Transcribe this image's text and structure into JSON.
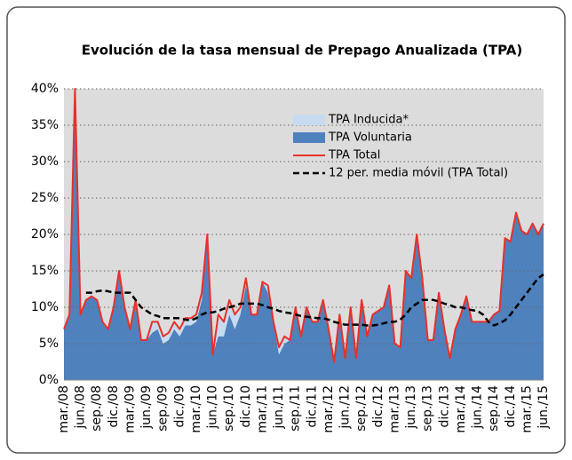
{
  "chart_data": {
    "type": "area-line",
    "title": "Evolución de la tasa mensual de Prepago Anualizada (TPA)",
    "categories": [
      "mar./08",
      null,
      null,
      "jun./08",
      null,
      null,
      "sep./08",
      null,
      null,
      "dic./08",
      null,
      null,
      "mar./09",
      null,
      null,
      "jun./09",
      null,
      null,
      "sep./09",
      null,
      null,
      "dic./09",
      null,
      null,
      "mar./10",
      null,
      null,
      "jun./10",
      null,
      null,
      "sep./10",
      null,
      null,
      "dic./10",
      null,
      null,
      "mar./11",
      null,
      null,
      "jun./11",
      null,
      null,
      "sep./11",
      null,
      null,
      "dic./11",
      null,
      null,
      "mar./12",
      null,
      null,
      "jun./12",
      null,
      null,
      "sep./12",
      null,
      null,
      "dic./12",
      null,
      null,
      "mar./13",
      null,
      null,
      "jun./13",
      null,
      null,
      "sep./13",
      null,
      null,
      "dic./13",
      null,
      null,
      "mar./14",
      null,
      null,
      "jun./14",
      null,
      null,
      "sep./14",
      null,
      null,
      "dic./14",
      null,
      null,
      "mar./15",
      null,
      null,
      "jun./15"
    ],
    "series": [
      {
        "name": "TPA Voluntaria",
        "kind": "area",
        "color": "#4f81bd",
        "values": [
          7,
          9,
          40,
          9,
          11,
          11.5,
          11,
          8,
          7,
          10,
          15,
          10,
          7,
          11,
          5.5,
          5.5,
          6.5,
          7,
          5,
          5.5,
          7,
          6,
          7.5,
          7.5,
          8,
          11,
          20,
          3.5,
          6,
          6,
          9,
          7,
          9,
          13,
          9,
          9,
          13.5,
          12,
          8,
          3.5,
          5,
          5.5,
          10,
          6,
          10,
          8,
          8,
          11,
          7,
          2.5,
          9,
          3,
          10,
          3,
          11,
          6,
          9,
          9.5,
          10,
          13,
          5,
          4.5,
          15,
          14,
          20,
          14,
          5.5,
          5.5,
          12,
          7,
          3,
          7,
          9,
          11.5,
          8,
          8,
          8,
          8,
          9,
          9.5,
          19.5,
          19,
          23,
          20.5,
          20,
          21.5,
          20,
          21.5
        ]
      },
      {
        "name": "TPA Inducida*",
        "kind": "area",
        "color": "#c6dbef",
        "values": [
          0,
          0,
          0,
          0,
          0,
          0,
          0,
          0,
          0,
          0,
          0,
          0,
          0,
          0,
          0,
          0,
          1.5,
          1,
          1,
          1,
          1,
          1,
          1,
          1,
          1,
          1,
          0,
          0,
          3,
          2,
          2,
          2,
          1,
          1,
          0,
          0,
          0,
          1,
          0,
          1,
          1,
          0,
          0,
          0,
          0,
          0,
          0,
          0,
          0,
          0,
          0,
          0,
          0,
          0,
          0,
          0,
          0,
          0,
          0,
          0,
          0,
          0,
          0,
          0,
          0,
          0,
          0,
          0,
          0,
          0,
          0,
          0,
          0,
          0,
          0,
          0,
          0,
          0,
          0,
          0,
          0,
          0,
          0,
          0,
          0,
          0,
          0,
          0
        ]
      },
      {
        "name": "TPA Total",
        "kind": "line",
        "color": "#e8302a",
        "values": [
          7,
          9,
          40,
          9,
          11,
          11.5,
          11,
          8,
          7,
          10,
          15,
          10,
          7,
          11,
          5.5,
          5.5,
          8,
          8,
          6,
          6.5,
          8,
          7,
          8.5,
          8.5,
          9,
          12,
          20,
          3.5,
          9,
          8,
          11,
          9,
          10,
          14,
          9,
          9,
          13.5,
          13,
          8,
          4.5,
          6,
          5.5,
          10,
          6,
          10,
          8,
          8,
          11,
          7,
          2.5,
          9,
          3,
          10,
          3,
          11,
          6,
          9,
          9.5,
          10,
          13,
          5,
          4.5,
          15,
          14,
          20,
          14,
          5.5,
          5.5,
          12,
          7,
          3,
          7,
          9,
          11.5,
          8,
          8,
          8,
          8,
          9,
          9.5,
          19.5,
          19,
          23,
          20.5,
          20,
          21.5,
          20,
          21.5
        ]
      },
      {
        "name": "12 per. media móvil (TPA Total)",
        "kind": "dashed",
        "color": "#000000",
        "values": [
          null,
          null,
          null,
          null,
          12,
          12,
          12.2,
          12.3,
          12.2,
          12,
          12,
          12,
          12,
          11,
          10,
          9.5,
          9,
          8.8,
          8.5,
          8.5,
          8.5,
          8.5,
          8.3,
          8.2,
          8.5,
          9,
          9.3,
          9.3,
          9.5,
          9.8,
          10,
          10.2,
          10.5,
          10.5,
          10.5,
          10.5,
          10.3,
          10,
          9.8,
          9.5,
          9.3,
          9.2,
          9,
          8.8,
          8.7,
          8.6,
          8.5,
          8.5,
          8.3,
          8,
          7.8,
          7.6,
          7.6,
          7.6,
          7.6,
          7.5,
          7.5,
          7.6,
          7.8,
          8,
          8,
          8.3,
          9,
          10,
          10.5,
          11,
          11,
          11,
          10.8,
          10.5,
          10.3,
          10,
          10,
          9.8,
          9.6,
          9.5,
          9,
          8,
          7.5,
          7.8,
          8.2,
          9,
          10,
          11,
          12,
          13,
          14,
          14.5
        ]
      }
    ],
    "ylim": [
      0,
      40
    ],
    "yticks": [
      {
        "value": 0,
        "label": "0%"
      },
      {
        "value": 5,
        "label": "5%"
      },
      {
        "value": 10,
        "label": "10%"
      },
      {
        "value": 15,
        "label": "15%"
      },
      {
        "value": 20,
        "label": "20%"
      },
      {
        "value": 25,
        "label": "25%"
      },
      {
        "value": 30,
        "label": "30%"
      },
      {
        "value": 35,
        "label": "35%"
      },
      {
        "value": 40,
        "label": "40%"
      }
    ],
    "grid": true,
    "legend": "top-right"
  }
}
